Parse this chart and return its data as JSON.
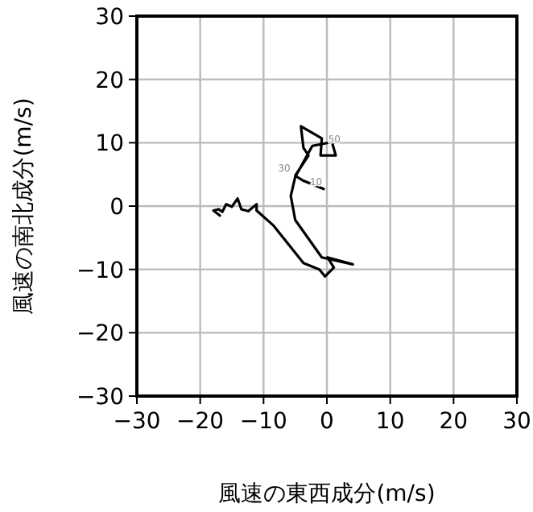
{
  "chart_data": {
    "type": "line",
    "xlabel": "風速の東西成分(m/s)",
    "ylabel": "風速の南北成分(m/s)",
    "xlim": [
      -30,
      30
    ],
    "ylim": [
      -30,
      30
    ],
    "xticks": [
      -30,
      -20,
      -10,
      0,
      10,
      20,
      30
    ],
    "yticks": [
      -30,
      -20,
      -10,
      0,
      10,
      20,
      30
    ],
    "grid": true,
    "series": [
      {
        "color": "#000000",
        "x": [
          -0.5,
          -3.7,
          -5.0,
          -2.9,
          -3.7,
          -4.1,
          -0.8,
          -1.0,
          1.4,
          0.8,
          -2.3,
          -5.0,
          -5.7,
          -5.0,
          -0.8,
          4.1,
          0.1,
          1.1,
          -0.3,
          -1.2,
          -3.7,
          -8.4,
          -11.1,
          -11.1,
          -12.4,
          -13.5,
          -14.1,
          -15.0,
          -15.9,
          -16.5,
          -17.1,
          -17.9,
          -16.9
        ],
        "values": [
          2.7,
          4.0,
          4.8,
          8.0,
          9.2,
          12.6,
          10.7,
          8.0,
          8.0,
          10.1,
          9.5,
          4.6,
          1.6,
          -2.2,
          -8.1,
          -9.2,
          -8.1,
          -9.7,
          -11.1,
          -10.0,
          -9.0,
          -3.1,
          -0.7,
          0.3,
          -0.8,
          -0.5,
          1.2,
          -0.1,
          0.3,
          -0.9,
          -0.5,
          -0.7,
          -1.5
        ]
      }
    ],
    "annotations": [
      {
        "text": "10",
        "x": -3.7,
        "y": 4.0
      },
      {
        "text": "30",
        "x": -5.0,
        "y": 4.8
      },
      {
        "text": "50",
        "x": -0.8,
        "y": 10.7
      }
    ]
  }
}
